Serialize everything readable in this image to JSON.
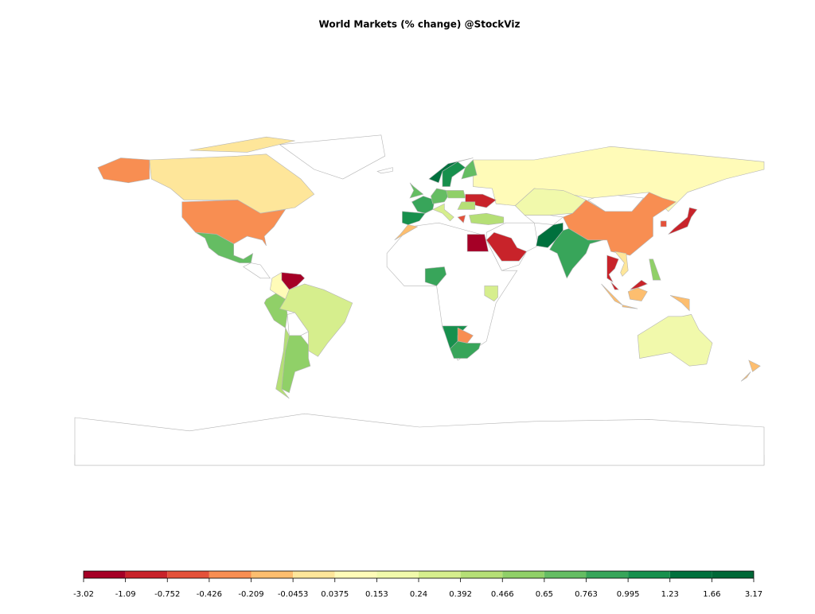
{
  "chart_data": {
    "type": "choropleth",
    "title": "World Markets (% change) @StockViz",
    "legend": {
      "breaks": [
        -3.02,
        -1.09,
        -0.752,
        -0.426,
        -0.209,
        -0.0453,
        0.0375,
        0.153,
        0.24,
        0.392,
        0.466,
        0.65,
        0.763,
        0.995,
        1.23,
        1.66,
        3.17
      ],
      "colors": [
        "#a50026",
        "#c8232a",
        "#e4513a",
        "#f88e52",
        "#fdbe6f",
        "#fee69a",
        "#fffbb8",
        "#f1f9ab",
        "#d6ee8d",
        "#b5df76",
        "#90d068",
        "#65bd63",
        "#38a55a",
        "#17904d",
        "#00703d",
        "#006837"
      ]
    },
    "no_data_color": "#ffffff"
  }
}
